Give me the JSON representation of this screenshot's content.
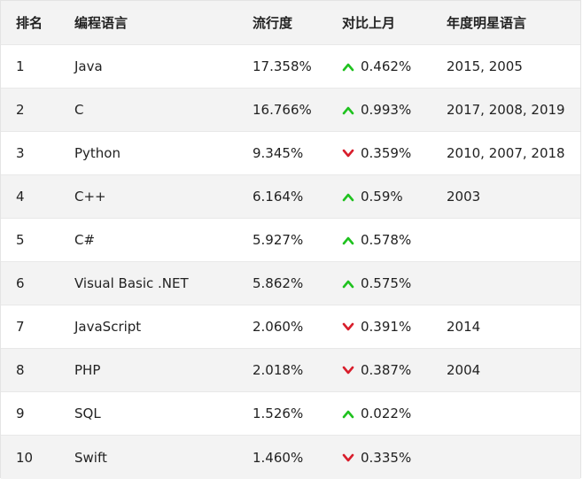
{
  "table": {
    "headers": {
      "rank": "排名",
      "language": "编程语言",
      "popularity": "流行度",
      "change": "对比上月",
      "star_years": "年度明星语言"
    },
    "colors": {
      "up": "#1fc21f",
      "down": "#d81e2c"
    },
    "rows": [
      {
        "rank": "1",
        "language": "Java",
        "popularity": "17.358%",
        "trend": "up",
        "change": "0.462%",
        "star_years": "2015, 2005"
      },
      {
        "rank": "2",
        "language": "C",
        "popularity": "16.766%",
        "trend": "up",
        "change": "0.993%",
        "star_years": "2017, 2008, 2019"
      },
      {
        "rank": "3",
        "language": "Python",
        "popularity": "9.345%",
        "trend": "down",
        "change": "0.359%",
        "star_years": "2010, 2007, 2018"
      },
      {
        "rank": "4",
        "language": "C++",
        "popularity": "6.164%",
        "trend": "up",
        "change": "0.59%",
        "star_years": "2003"
      },
      {
        "rank": "5",
        "language": "C#",
        "popularity": "5.927%",
        "trend": "up",
        "change": "0.578%",
        "star_years": ""
      },
      {
        "rank": "6",
        "language": "Visual Basic .NET",
        "popularity": "5.862%",
        "trend": "up",
        "change": "0.575%",
        "star_years": ""
      },
      {
        "rank": "7",
        "language": "JavaScript",
        "popularity": "2.060%",
        "trend": "down",
        "change": "0.391%",
        "star_years": "2014"
      },
      {
        "rank": "8",
        "language": "PHP",
        "popularity": "2.018%",
        "trend": "down",
        "change": "0.387%",
        "star_years": "2004"
      },
      {
        "rank": "9",
        "language": "SQL",
        "popularity": "1.526%",
        "trend": "up",
        "change": "0.022%",
        "star_years": ""
      },
      {
        "rank": "10",
        "language": "Swift",
        "popularity": "1.460%",
        "trend": "down",
        "change": "0.335%",
        "star_years": ""
      }
    ]
  }
}
